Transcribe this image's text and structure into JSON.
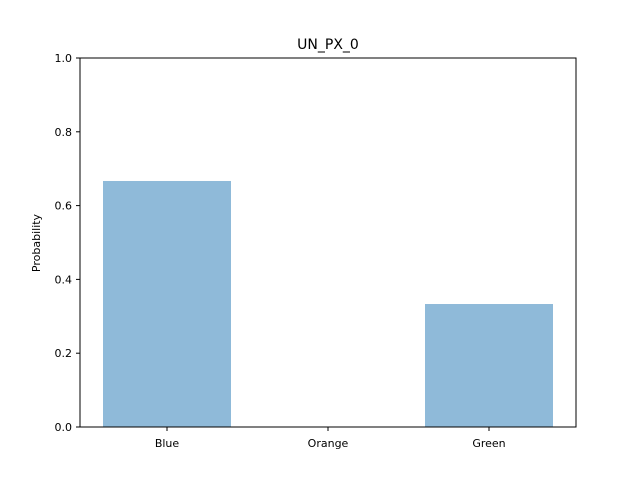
{
  "chart_data": {
    "type": "bar",
    "title": "UN_PX_0",
    "xlabel": "",
    "ylabel": "Probability",
    "categories": [
      "Blue",
      "Orange",
      "Green"
    ],
    "values": [
      0.6667,
      0.0,
      0.3333
    ],
    "ylim": [
      0,
      1.0
    ],
    "yticks": [
      "0.0",
      "0.2",
      "0.4",
      "0.6",
      "0.8",
      "1.0"
    ],
    "grid": false,
    "legend": "none",
    "bar_color": "#8fbad9"
  }
}
